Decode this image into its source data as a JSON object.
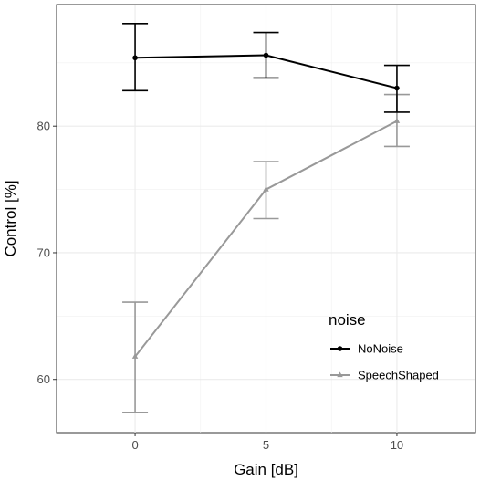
{
  "chart_data": {
    "type": "line",
    "xlabel": "Gain [dB]",
    "ylabel": "Control [%]",
    "x": [
      0,
      5,
      10
    ],
    "x_tick_labels": [
      "0",
      "5",
      "10"
    ],
    "xlim": [
      -3,
      13
    ],
    "ylim": [
      55.8,
      89.6
    ],
    "y_ticks": [
      60,
      70,
      80
    ],
    "y_tick_labels": [
      "60",
      "70",
      "80"
    ],
    "grid": true,
    "legend": {
      "title": "noise",
      "placement": "bottom-right, inside plot"
    },
    "series": [
      {
        "name": "NoNoise",
        "color": "#000000",
        "marker": "circle",
        "values": [
          85.4,
          85.6,
          83.0
        ],
        "error_low": [
          82.8,
          83.8,
          81.1
        ],
        "error_high": [
          88.1,
          87.4,
          84.8
        ]
      },
      {
        "name": "SpeechShaped",
        "color": "#999999",
        "marker": "triangle",
        "values": [
          61.8,
          75.0,
          80.4
        ],
        "error_low": [
          57.4,
          72.7,
          78.4
        ],
        "error_high": [
          66.1,
          77.2,
          82.5
        ]
      }
    ]
  }
}
